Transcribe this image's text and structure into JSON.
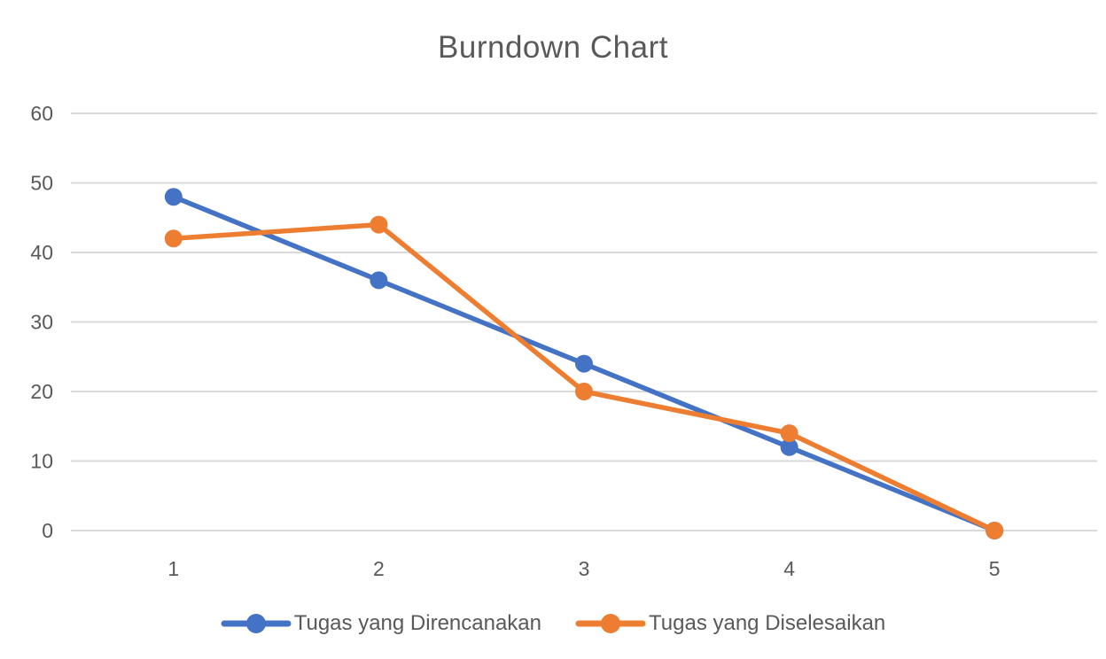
{
  "chart_data": {
    "type": "line",
    "title": "Burndown Chart",
    "categories": [
      "1",
      "2",
      "3",
      "4",
      "5"
    ],
    "series": [
      {
        "name": "Tugas yang Direncanakan",
        "color": "#4472C4",
        "values": [
          48,
          36,
          24,
          12,
          0
        ]
      },
      {
        "name": "Tugas yang Diselesaikan",
        "color": "#ED7D31",
        "values": [
          42,
          44,
          20,
          14,
          0
        ]
      }
    ],
    "xlabel": "",
    "ylabel": "",
    "ylim": [
      0,
      60
    ],
    "yticks": [
      0,
      10,
      20,
      30,
      40,
      50,
      60
    ],
    "grid": true,
    "legend_position": "bottom",
    "marker": "circle"
  },
  "colors": {
    "text": "#595959",
    "gridline": "#D9D9D9",
    "background": "#FFFFFF"
  }
}
